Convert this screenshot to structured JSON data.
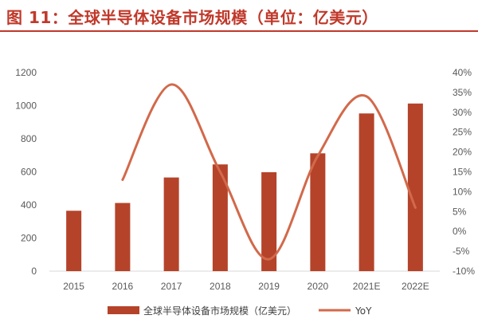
{
  "header": {
    "title": "图 11：全球半导体设备市场规模（单位：亿美元）"
  },
  "chart_data": {
    "type": "bar",
    "categories": [
      "2015",
      "2016",
      "2017",
      "2018",
      "2019",
      "2020",
      "2021E",
      "2022E"
    ],
    "series": [
      {
        "name": "全球半导体设备市场规模（亿美元）",
        "type": "bar",
        "axis": "left",
        "color": "#b5432a",
        "values": [
          365,
          412,
          566,
          645,
          598,
          712,
          953,
          1013
        ]
      },
      {
        "name": "YoY",
        "type": "line",
        "axis": "right",
        "color": "#d2694a",
        "values": [
          null,
          13,
          37,
          15,
          -7,
          19,
          34,
          6
        ],
        "smooth": true
      }
    ],
    "title": "",
    "xlabel": "",
    "ylabel": "",
    "ylim": [
      0,
      1200
    ],
    "y_ticks": [
      0,
      200,
      400,
      600,
      800,
      1000,
      1200
    ],
    "y2lim": [
      -10,
      40
    ],
    "y2_ticks": [
      "-10%",
      "-5%",
      "0%",
      "5%",
      "10%",
      "15%",
      "20%",
      "25%",
      "30%",
      "35%",
      "40%"
    ],
    "grid": false,
    "legend_position": "bottom"
  }
}
